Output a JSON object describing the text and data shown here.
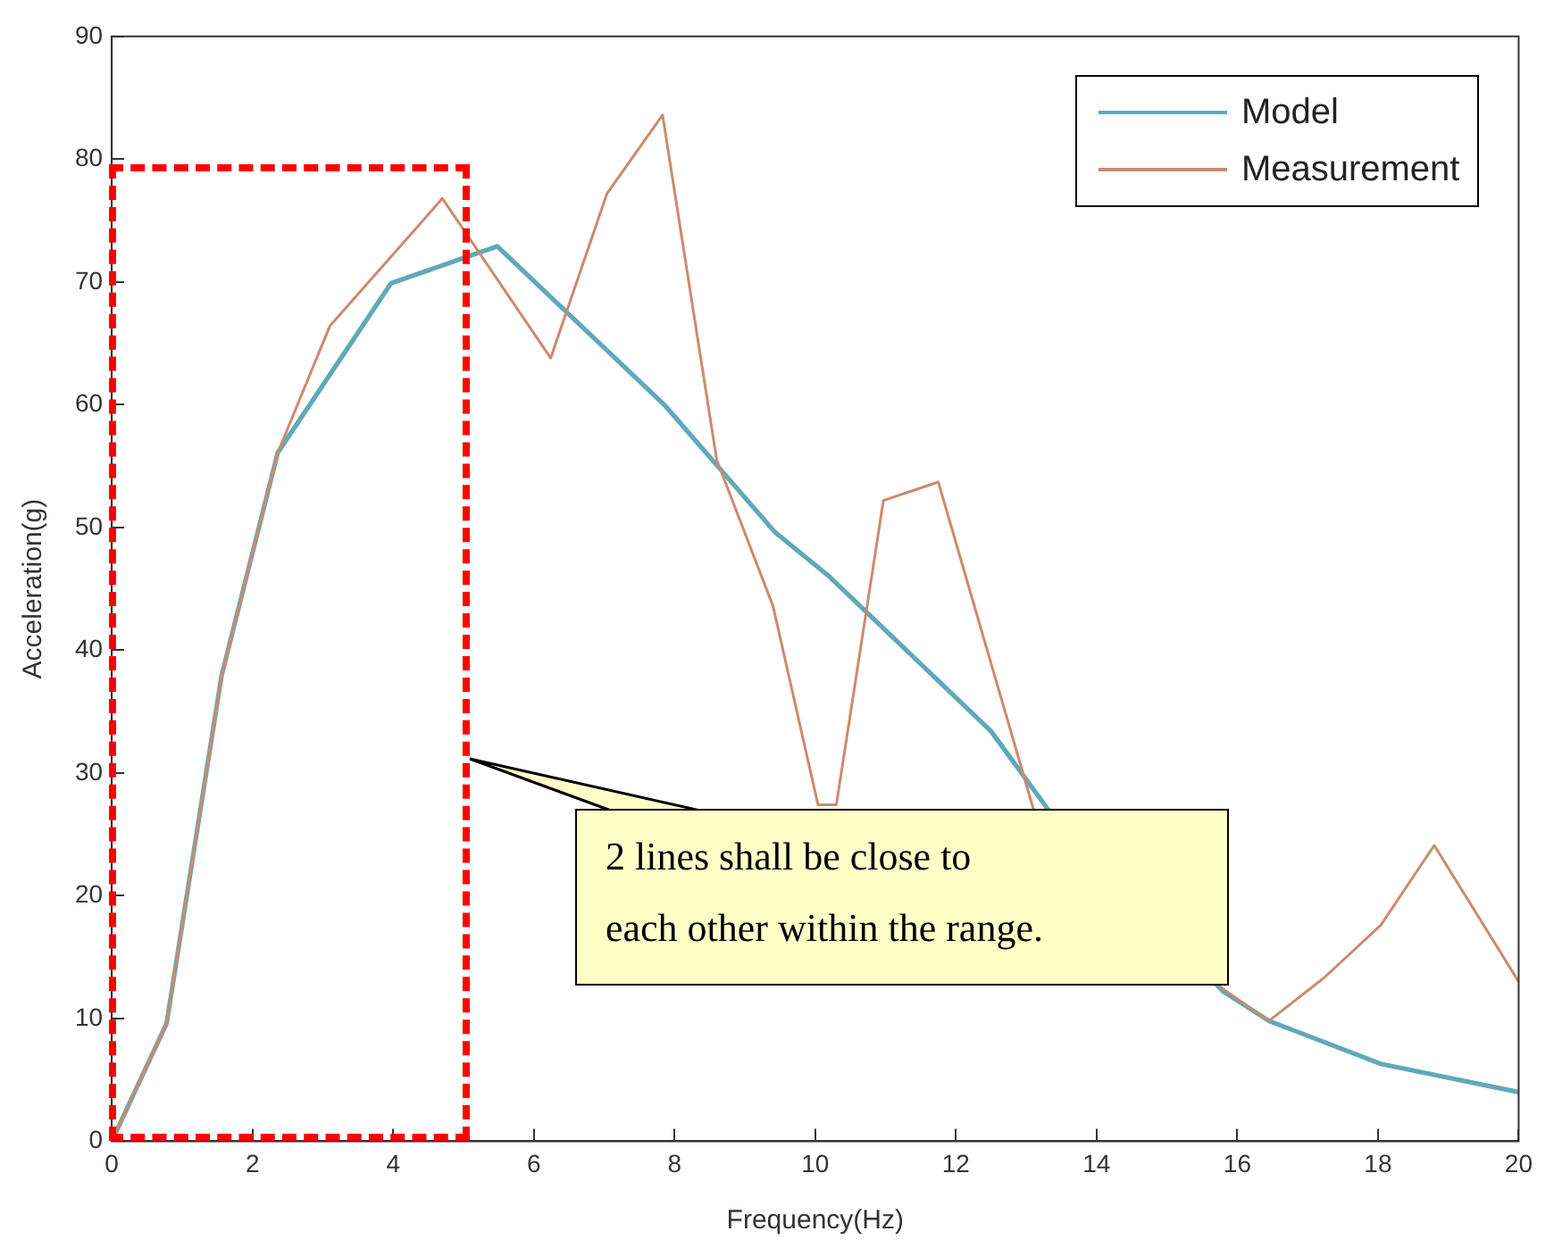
{
  "chart_data": {
    "type": "line",
    "xlabel": "Frequency(Hz)",
    "ylabel": "Acceleration(g)",
    "xlim": [
      0,
      20
    ],
    "xticks": [
      0,
      2,
      4,
      6,
      8,
      10,
      12,
      14,
      16,
      18,
      20
    ],
    "ylim": [
      0,
      90
    ],
    "yticks": [
      0,
      10,
      20,
      30,
      40,
      50,
      60,
      70,
      80,
      90
    ],
    "grid": false,
    "legend": "top right",
    "marker": "none",
    "line_style": "solid",
    "series": [
      {
        "name": "Model",
        "color": "#5fa9b9",
        "x": [
          0,
          0.78,
          1.56,
          2.36,
          3.97,
          5.48,
          7.87,
          9.43,
          10.2,
          12.5,
          13.3,
          15.8,
          16.45,
          18.04,
          20
        ],
        "values": [
          0,
          9.6,
          37.9,
          56.1,
          69.9,
          72.9,
          59.9,
          49.6,
          46,
          33.4,
          27.1,
          12.2,
          9.8,
          6.3,
          4
        ]
      },
      {
        "name": "Measurement",
        "color": "#cc8a6c",
        "x": [
          0,
          0.78,
          1.56,
          2.36,
          3.1,
          4.7,
          6.24,
          7.04,
          7.83,
          8.6,
          9.4,
          10.04,
          10.3,
          10.97,
          11.75,
          13.1,
          15.8,
          16.45,
          17.23,
          18.04,
          18.8,
          20
        ],
        "values": [
          0,
          9.6,
          37.9,
          56.1,
          66.4,
          76.8,
          63.8,
          77.2,
          83.6,
          55.5,
          43.6,
          27.4,
          27.4,
          52.2,
          53.7,
          27.1,
          12.4,
          9.8,
          13.3,
          17.6,
          24.1,
          13
        ]
      }
    ],
    "annotations": [
      "2 lines shall be close to each other within the range."
    ]
  }
}
